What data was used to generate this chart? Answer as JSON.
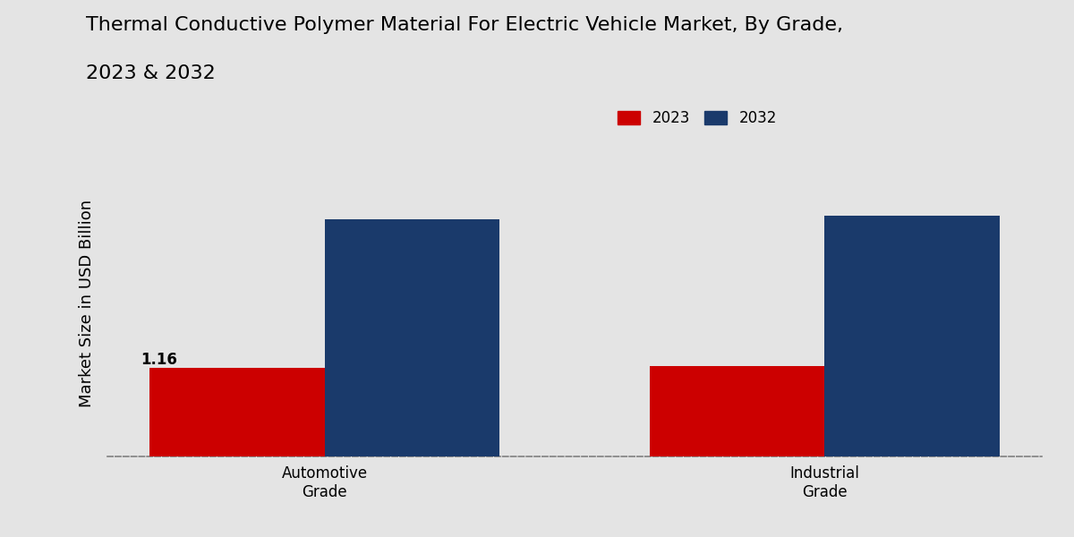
{
  "title_line1": "Thermal Conductive Polymer Material For Electric Vehicle Market, By Grade,",
  "title_line2": "2023 & 2032",
  "ylabel": "Market Size in USD Billion",
  "categories": [
    "Automotive\nGrade",
    "Industrial\nGrade"
  ],
  "series": {
    "2023": [
      1.16,
      1.18
    ],
    "2032": [
      3.1,
      3.15
    ]
  },
  "bar_colors": {
    "2023": "#cc0000",
    "2032": "#1a3a6b"
  },
  "annotation_2023": "1.16",
  "background_color": "#e4e4e4",
  "title_fontsize": 16,
  "axis_label_fontsize": 13,
  "tick_fontsize": 12,
  "legend_fontsize": 12,
  "bar_width": 0.35,
  "ylim": [
    0,
    4.0
  ],
  "legend_labels": [
    "2023",
    "2032"
  ]
}
